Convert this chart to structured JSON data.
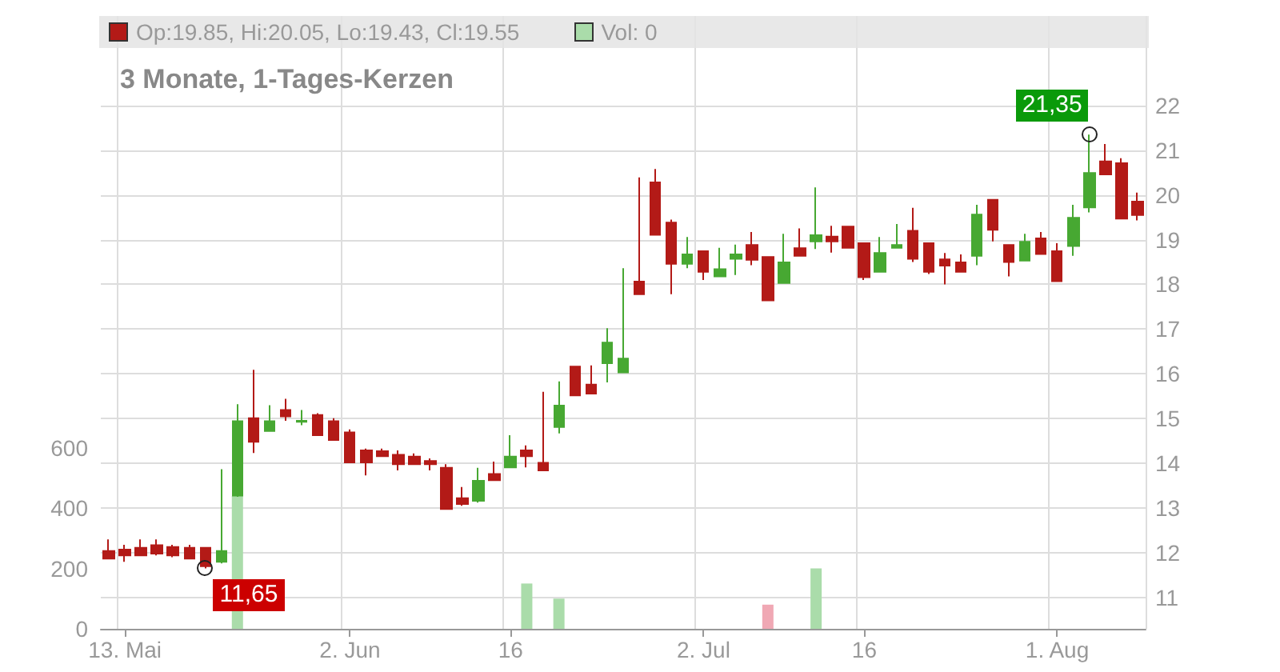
{
  "chart_data": {
    "type": "candlestick",
    "title": "3 Monate, 1-Tages-Kerzen",
    "annotations": [
      "Op:19.85, Hi:20.05, Lo:19.43, Cl:19.55",
      "Vol: 0",
      "11,65",
      "21,35"
    ],
    "categories": [
      null,
      "13. Mai",
      null,
      null,
      null,
      null,
      null,
      null,
      null,
      null,
      null,
      null,
      null,
      null,
      null,
      "2. Jun",
      null,
      null,
      null,
      null,
      null,
      null,
      null,
      null,
      null,
      "16",
      null,
      null,
      null,
      null,
      null,
      null,
      null,
      null,
      null,
      null,
      null,
      "2. Jul",
      null,
      null,
      null,
      null,
      null,
      null,
      null,
      null,
      null,
      "16",
      null,
      null,
      null,
      null,
      null,
      null,
      null,
      null,
      null,
      null,
      null,
      "1. Aug",
      null,
      null,
      null,
      null,
      null
    ],
    "ylim": [
      10.3,
      24
    ],
    "yticks": [
      11,
      12,
      13,
      14,
      15,
      16,
      17,
      18,
      19,
      20,
      21,
      22
    ],
    "y2lim": [
      0,
      2030
    ],
    "y2ticks": [
      0,
      200,
      400,
      600
    ],
    "grid": true,
    "series": [
      {
        "ohlc": [
          [
            12.04,
            12.3,
            11.85,
            11.87
          ],
          [
            12.07,
            12.18,
            11.8,
            11.94
          ],
          [
            12.11,
            12.3,
            11.94,
            11.94
          ],
          [
            12.17,
            12.3,
            11.94,
            11.98
          ],
          [
            12.13,
            12.18,
            11.9,
            11.94
          ],
          [
            12.11,
            12.18,
            11.87,
            11.87
          ],
          [
            12.11,
            12.13,
            11.65,
            11.7
          ],
          [
            11.8,
            13.87,
            11.76,
            12.04
          ],
          [
            13.28,
            15.32,
            13.25,
            14.94
          ],
          [
            15.01,
            16.09,
            14.23,
            14.48
          ],
          [
            14.72,
            15.3,
            14.72,
            14.94
          ],
          [
            15.19,
            15.44,
            14.95,
            15.05
          ],
          [
            14.93,
            15.19,
            14.85,
            14.95
          ],
          [
            15.08,
            15.12,
            14.63,
            14.63
          ],
          [
            14.94,
            15.01,
            14.52,
            14.52
          ],
          [
            14.69,
            14.76,
            14.02,
            14.02
          ],
          [
            14.29,
            14.33,
            13.73,
            14.02
          ],
          [
            14.27,
            14.33,
            14.16,
            14.16
          ],
          [
            14.19,
            14.29,
            13.84,
            13.98
          ],
          [
            14.15,
            14.22,
            13.98,
            13.98
          ],
          [
            14.05,
            14.11,
            13.84,
            13.98
          ],
          [
            13.9,
            13.98,
            12.98,
            12.98
          ],
          [
            13.22,
            13.47,
            13.05,
            13.09
          ],
          [
            13.16,
            13.9,
            13.12,
            13.61
          ],
          [
            13.76,
            14.04,
            13.62,
            13.62
          ],
          [
            13.91,
            14.63,
            13.91,
            14.15
          ],
          [
            14.29,
            14.4,
            13.91,
            14.16
          ],
          [
            14.01,
            15.6,
            13.84,
            13.84
          ],
          [
            14.81,
            15.83,
            14.67,
            15.29
          ],
          [
            16.16,
            16.16,
            15.52,
            15.52
          ],
          [
            15.76,
            16.19,
            15.56,
            15.56
          ],
          [
            16.24,
            17.02,
            15.81,
            16.7
          ],
          [
            16.03,
            18.36,
            16.03,
            16.34
          ],
          [
            18.06,
            20.39,
            17.78,
            17.78
          ],
          [
            20.28,
            20.58,
            19.11,
            19.11
          ],
          [
            19.38,
            19.45,
            17.78,
            18.46
          ],
          [
            18.46,
            19.06,
            18.36,
            18.67
          ],
          [
            18.74,
            18.74,
            18.1,
            18.28
          ],
          [
            18.18,
            18.82,
            18.18,
            18.34
          ],
          [
            18.57,
            18.89,
            18.21,
            18.67
          ],
          [
            18.88,
            19.17,
            18.43,
            18.55
          ],
          [
            18.61,
            18.61,
            17.64,
            17.64
          ],
          [
            18.03,
            19.13,
            18.03,
            18.49
          ],
          [
            18.81,
            19.25,
            18.64,
            18.64
          ],
          [
            18.96,
            20.17,
            18.79,
            19.1
          ],
          [
            19.07,
            19.31,
            18.71,
            18.96
          ],
          [
            19.29,
            19.29,
            18.82,
            18.82
          ],
          [
            18.92,
            18.92,
            18.1,
            18.16
          ],
          [
            18.28,
            19.06,
            18.28,
            18.7
          ],
          [
            18.82,
            19.35,
            18.82,
            18.88
          ],
          [
            19.2,
            19.71,
            18.5,
            18.57
          ],
          [
            18.92,
            18.92,
            18.23,
            18.28
          ],
          [
            18.56,
            18.7,
            18.0,
            18.42
          ],
          [
            18.49,
            18.67,
            18.28,
            18.28
          ],
          [
            18.64,
            19.78,
            18.43,
            19.56
          ],
          [
            19.89,
            19.89,
            18.96,
            19.22
          ],
          [
            18.88,
            18.88,
            18.18,
            18.5
          ],
          [
            18.53,
            19.13,
            18.53,
            18.95
          ],
          [
            19.03,
            19.17,
            18.68,
            18.68
          ],
          [
            18.74,
            18.92,
            18.07,
            18.07
          ],
          [
            18.86,
            19.78,
            18.64,
            19.49
          ],
          [
            19.72,
            21.35,
            19.61,
            20.49
          ],
          [
            20.75,
            21.14,
            20.46,
            20.46
          ],
          [
            20.71,
            20.82,
            19.47,
            19.47
          ],
          [
            19.85,
            20.05,
            19.43,
            19.55
          ]
        ],
        "colors": [
          "#b31a17",
          "#b31a17",
          "#b31a17",
          "#b31a17",
          "#b31a17",
          "#b31a17",
          "#b31a17",
          "#47a832",
          "#47a832",
          "#b31a17",
          "#47a832",
          "#b31a17",
          "#47a832",
          "#b31a17",
          "#b31a17",
          "#b31a17",
          "#b31a17",
          "#b31a17",
          "#b31a17",
          "#b31a17",
          "#b31a17",
          "#b31a17",
          "#b31a17",
          "#47a832",
          "#b31a17",
          "#47a832",
          "#b31a17",
          "#b31a17",
          "#47a832",
          "#b31a17",
          "#b31a17",
          "#47a832",
          "#47a832",
          "#b31a17",
          "#b31a17",
          "#b31a17",
          "#47a832",
          "#b31a17",
          "#47a832",
          "#47a832",
          "#b31a17",
          "#b31a17",
          "#47a832",
          "#b31a17",
          "#47a832",
          "#b31a17",
          "#b31a17",
          "#b31a17",
          "#47a832",
          "#47a832",
          "#b31a17",
          "#b31a17",
          "#b31a17",
          "#b31a17",
          "#47a832",
          "#b31a17",
          "#b31a17",
          "#47a832",
          "#b31a17",
          "#b31a17",
          "#47a832",
          "#47a832",
          "#b31a17",
          "#b31a17",
          "#b31a17"
        ]
      },
      {
        "type": "bar",
        "axis": "y2",
        "values": [
          0,
          0,
          0,
          0,
          0,
          0,
          0,
          0,
          440,
          0,
          0,
          0,
          0,
          0,
          0,
          0,
          0,
          0,
          0,
          0,
          0,
          0,
          0,
          0,
          0,
          0,
          150,
          0,
          100,
          0,
          0,
          0,
          0,
          0,
          0,
          0,
          0,
          0,
          0,
          0,
          0,
          80,
          0,
          0,
          200,
          0,
          0,
          0,
          0,
          0,
          0,
          0,
          0,
          0,
          0,
          0,
          0,
          0,
          0,
          0,
          0,
          0,
          0,
          0,
          0
        ],
        "colors": [
          "#aadcaa",
          "#aadcaa",
          "#aadcaa",
          "#aadcaa",
          "#aadcaa",
          "#aadcaa",
          "#aadcaa",
          "#aadcaa",
          "#aadcaa",
          "#aadcaa",
          "#aadcaa",
          "#aadcaa",
          "#aadcaa",
          "#aadcaa",
          "#aadcaa",
          "#aadcaa",
          "#aadcaa",
          "#aadcaa",
          "#aadcaa",
          "#aadcaa",
          "#aadcaa",
          "#aadcaa",
          "#aadcaa",
          "#aadcaa",
          "#aadcaa",
          "#aadcaa",
          "#aadcaa",
          "#aadcaa",
          "#aadcaa",
          "#aadcaa",
          "#aadcaa",
          "#aadcaa",
          "#aadcaa",
          "#aadcaa",
          "#aadcaa",
          "#aadcaa",
          "#aadcaa",
          "#aadcaa",
          "#aadcaa",
          "#aadcaa",
          "#aadcaa",
          "#f0a8b4",
          "#aadcaa",
          "#aadcaa",
          "#aadcaa",
          "#aadcaa",
          "#aadcaa",
          "#aadcaa",
          "#aadcaa",
          "#aadcaa",
          "#aadcaa",
          "#aadcaa",
          "#aadcaa",
          "#aadcaa",
          "#aadcaa",
          "#aadcaa",
          "#aadcaa",
          "#aadcaa",
          "#aadcaa",
          "#aadcaa",
          "#aadcaa",
          "#aadcaa",
          "#aadcaa",
          "#aadcaa",
          "#aadcaa"
        ]
      }
    ]
  }
}
